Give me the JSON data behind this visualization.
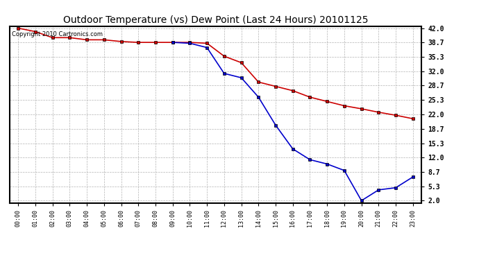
{
  "title": "Outdoor Temperature (vs) Dew Point (Last 24 Hours) 20101125",
  "copyright": "Copyright 2010 Cartronics.com",
  "x_labels": [
    "00:00",
    "01:00",
    "02:00",
    "03:00",
    "04:00",
    "05:00",
    "06:00",
    "07:00",
    "08:00",
    "09:00",
    "10:00",
    "11:00",
    "12:00",
    "13:00",
    "14:00",
    "15:00",
    "16:00",
    "17:00",
    "18:00",
    "19:00",
    "20:00",
    "21:00",
    "22:00",
    "23:00"
  ],
  "temp_values": [
    42.0,
    41.2,
    39.8,
    39.8,
    39.3,
    39.3,
    38.9,
    38.7,
    38.7,
    38.7,
    38.7,
    38.5,
    35.5,
    34.0,
    29.5,
    28.5,
    27.5,
    26.0,
    25.0,
    24.0,
    23.3,
    22.5,
    21.8,
    21.0
  ],
  "dew_values": [
    null,
    null,
    null,
    null,
    null,
    null,
    null,
    null,
    null,
    38.7,
    38.5,
    37.5,
    31.5,
    30.5,
    26.0,
    19.5,
    14.0,
    11.5,
    10.5,
    9.0,
    2.0,
    4.5,
    5.0,
    7.5
  ],
  "temp_color": "#cc0000",
  "dew_color": "#0000cc",
  "marker_face_temp": "#cc0000",
  "marker_face_dew": "#0000cc",
  "marker_edge_color": "#000000",
  "background_color": "#ffffff",
  "grid_color": "#aaaaaa",
  "ylim": [
    2.0,
    42.0
  ],
  "yticks": [
    2.0,
    5.3,
    8.7,
    12.0,
    15.3,
    18.7,
    22.0,
    25.3,
    28.7,
    32.0,
    35.3,
    38.7,
    42.0
  ],
  "title_fontsize": 10,
  "copyright_fontsize": 6,
  "figwidth": 6.9,
  "figheight": 3.75,
  "dpi": 100
}
